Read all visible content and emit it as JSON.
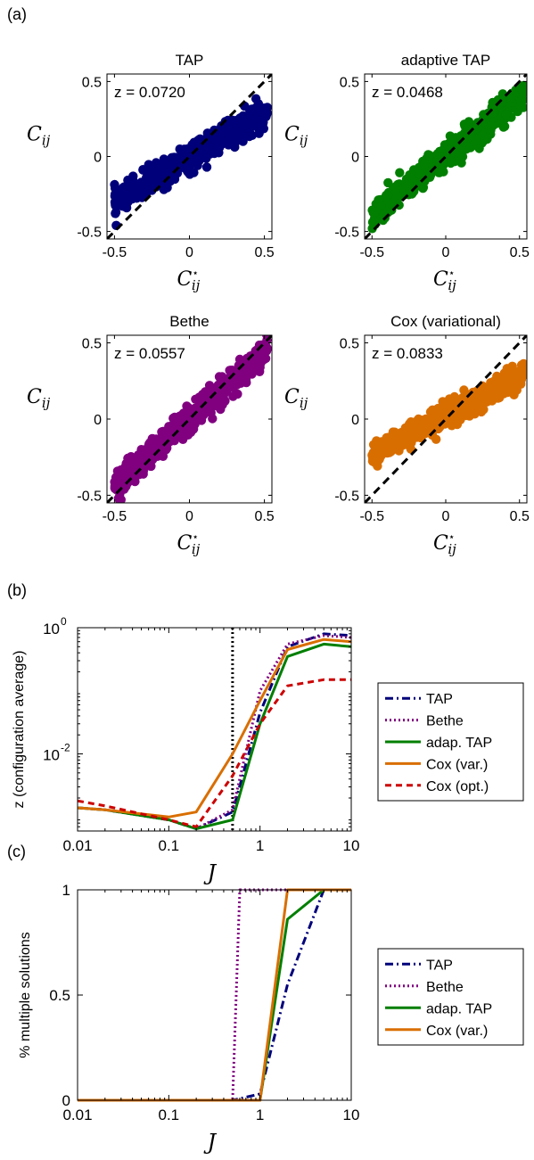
{
  "colors": {
    "TAP": "#00007a",
    "Bethe": "#800080",
    "adapTAP": "#007f00",
    "CoxVar": "#d96e00",
    "CoxOpt": "#cc0000",
    "diagonal": "#000000"
  },
  "chart_data": [
    {
      "panel": "(a)",
      "type": "scatter",
      "title": "TAP",
      "annotation": "z = 0.0720",
      "xlabel": "C*_ij",
      "ylabel": "C_ij",
      "xlim": [
        -0.55,
        0.55
      ],
      "ylim": [
        -0.55,
        0.55
      ],
      "xticks": [
        "-0.5",
        "0",
        "0.5"
      ],
      "yticks": [
        "-0.5",
        "0",
        "0.5"
      ],
      "color": "#00007a",
      "fit": {
        "slope": 0.6,
        "intercept": -0.01,
        "spread": 0.045,
        "x_range": [
          -0.5,
          0.52
        ]
      },
      "diagonal": true
    },
    {
      "panel": "(a)",
      "type": "scatter",
      "title": "adaptive TAP",
      "annotation": "z = 0.0468",
      "xlabel": "C*_ij",
      "ylabel": "C_ij",
      "xlim": [
        -0.55,
        0.55
      ],
      "ylim": [
        -0.55,
        0.55
      ],
      "xticks": [
        "-0.5",
        "0",
        "0.5"
      ],
      "yticks": [
        "-0.5",
        "0",
        "0.5"
      ],
      "color": "#007f00",
      "fit": {
        "slope": 0.8,
        "intercept": 0.0,
        "spread": 0.045,
        "x_range": [
          -0.5,
          0.53
        ]
      },
      "diagonal": true
    },
    {
      "panel": "(a)",
      "type": "scatter",
      "title": "Bethe",
      "annotation": "z = 0.0557",
      "xlabel": "C*_ij",
      "ylabel": "C_ij",
      "xlim": [
        -0.55,
        0.55
      ],
      "ylim": [
        -0.55,
        0.55
      ],
      "xticks": [
        "-0.5",
        "0",
        "0.5"
      ],
      "yticks": [
        "-0.5",
        "0",
        "0.5"
      ],
      "color": "#800080",
      "fit": {
        "slope": 0.88,
        "intercept": 0.0,
        "spread": 0.045,
        "x_range": [
          -0.5,
          0.52
        ]
      },
      "diagonal": true
    },
    {
      "panel": "(a)",
      "type": "scatter",
      "title": "Cox (variational)",
      "annotation": "z = 0.0833",
      "xlabel": "C*_ij",
      "ylabel": "C_ij",
      "xlim": [
        -0.55,
        0.55
      ],
      "ylim": [
        -0.55,
        0.55
      ],
      "xticks": [
        "-0.5",
        "0",
        "0.5"
      ],
      "yticks": [
        "-0.5",
        "0",
        "0.5"
      ],
      "color": "#d96e00",
      "fit": {
        "slope": 0.5,
        "intercept": 0.02,
        "spread": 0.04,
        "x_range": [
          -0.5,
          0.53
        ]
      },
      "diagonal": true
    },
    {
      "panel": "(b)",
      "type": "line",
      "xlabel": "J",
      "ylabel": "z (configuration average)",
      "xscale": "log",
      "yscale": "log",
      "xlim": [
        0.01,
        10
      ],
      "ylim": [
        0.0006,
        1
      ],
      "xticks": [
        "0.01",
        "0.1",
        "1",
        "10"
      ],
      "yticks": [
        {
          "base": "10",
          "exp": "0"
        },
        {
          "base": "10",
          "exp": "-2"
        }
      ],
      "vline": 0.5,
      "legend": "outside-right",
      "series": [
        {
          "name": "TAP",
          "color": "#00007a",
          "dash": "dashdot",
          "x": [
            0.01,
            0.02,
            0.1,
            0.2,
            0.5,
            1,
            2,
            5,
            10
          ],
          "y": [
            0.0014,
            0.0013,
            0.0009,
            0.00065,
            0.0012,
            0.045,
            0.5,
            0.8,
            0.75
          ]
        },
        {
          "name": "Bethe",
          "color": "#800080",
          "dash": "dotted",
          "x": [
            0.01,
            0.02,
            0.1,
            0.2,
            0.5,
            1,
            2,
            5,
            10
          ],
          "y": [
            0.0014,
            0.0013,
            0.0009,
            0.00065,
            0.0013,
            0.1,
            0.55,
            0.75,
            0.7
          ]
        },
        {
          "name": "adap. TAP",
          "color": "#007f00",
          "dash": "solid",
          "x": [
            0.01,
            0.02,
            0.1,
            0.2,
            0.5,
            1,
            2,
            5,
            10
          ],
          "y": [
            0.0014,
            0.0013,
            0.0009,
            0.00065,
            0.0009,
            0.03,
            0.35,
            0.55,
            0.5
          ]
        },
        {
          "name": "Cox (var.)",
          "color": "#d96e00",
          "dash": "solid",
          "x": [
            0.01,
            0.02,
            0.1,
            0.2,
            0.5,
            1,
            2,
            5,
            10
          ],
          "y": [
            0.0014,
            0.0013,
            0.001,
            0.0012,
            0.01,
            0.07,
            0.45,
            0.65,
            0.6
          ]
        },
        {
          "name": "Cox (opt.)",
          "color": "#cc0000",
          "dash": "dashed",
          "x": [
            0.01,
            0.02,
            0.1,
            0.2,
            0.5,
            1,
            2,
            5,
            10
          ],
          "y": [
            0.0018,
            0.0015,
            0.0009,
            0.0007,
            0.0045,
            0.03,
            0.12,
            0.15,
            0.15
          ]
        }
      ]
    },
    {
      "panel": "(c)",
      "type": "line",
      "xlabel": "J",
      "ylabel": "% multiple solutions",
      "xscale": "log",
      "xlim": [
        0.01,
        10
      ],
      "ylim": [
        0,
        1
      ],
      "xticks": [
        "0.01",
        "0.1",
        "1",
        "10"
      ],
      "yticks": [
        "0",
        "0.5",
        "1"
      ],
      "legend": "outside-right",
      "series": [
        {
          "name": "TAP",
          "color": "#00007a",
          "dash": "dashdot",
          "x": [
            0.01,
            0.02,
            0.1,
            0.2,
            0.5,
            1,
            2,
            5,
            10
          ],
          "y": [
            0,
            0,
            0,
            0,
            0,
            0.03,
            0.55,
            1,
            1
          ]
        },
        {
          "name": "Bethe",
          "color": "#800080",
          "dash": "dotted",
          "x": [
            0.01,
            0.02,
            0.1,
            0.2,
            0.5,
            0.6,
            1,
            2,
            5,
            10
          ],
          "y": [
            0,
            0,
            0,
            0,
            0,
            1,
            1,
            1,
            1,
            1
          ]
        },
        {
          "name": "adap. TAP",
          "color": "#007f00",
          "dash": "solid",
          "x": [
            0.01,
            0.02,
            0.1,
            0.2,
            0.5,
            1,
            2,
            5,
            10
          ],
          "y": [
            0,
            0,
            0,
            0,
            0,
            0,
            0.86,
            1,
            1
          ]
        },
        {
          "name": "Cox (var.)",
          "color": "#d96e00",
          "dash": "solid",
          "x": [
            0.01,
            0.02,
            0.1,
            0.2,
            0.5,
            1,
            2,
            5,
            10
          ],
          "y": [
            0,
            0,
            0,
            0,
            0,
            0,
            1,
            1,
            1
          ]
        }
      ]
    }
  ]
}
